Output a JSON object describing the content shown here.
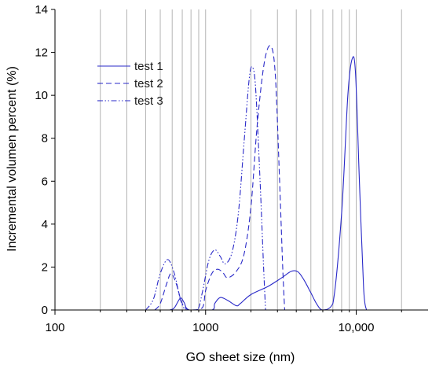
{
  "chart_data": {
    "type": "line",
    "title": "",
    "xlabel": "GO sheet size (nm)",
    "ylabel": "Incremental volumen percent (%)",
    "x_scale": "log",
    "xlim": [
      100,
      30000
    ],
    "ylim": [
      0,
      14
    ],
    "x_ticks": [
      100,
      1000,
      10000
    ],
    "x_tick_labels": [
      "100",
      "1000",
      "10,000"
    ],
    "x_minor_ticks": [
      200,
      300,
      400,
      500,
      600,
      700,
      800,
      900,
      2000,
      3000,
      4000,
      5000,
      6000,
      7000,
      8000,
      9000,
      20000
    ],
    "y_ticks": [
      0,
      2,
      4,
      6,
      8,
      10,
      12,
      14
    ],
    "y_tick_labels": [
      "0",
      "2",
      "4",
      "6",
      "8",
      "10",
      "12",
      "14"
    ],
    "grid": "vertical lines at x ticks",
    "legend_position": "top-left",
    "line_color": "#2929c8",
    "grid_color": "#b4b4b4",
    "series": [
      {
        "name": "test 1",
        "style": "solid",
        "points": [
          [
            580,
            0
          ],
          [
            620,
            0.1
          ],
          [
            680,
            0.55
          ],
          [
            720,
            0.35
          ],
          [
            780,
            0
          ],
          [
            1100,
            0
          ],
          [
            1150,
            0.3
          ],
          [
            1250,
            0.58
          ],
          [
            1400,
            0.45
          ],
          [
            1600,
            0.2
          ],
          [
            1700,
            0.3
          ],
          [
            2000,
            0.72
          ],
          [
            2600,
            1.1
          ],
          [
            3200,
            1.5
          ],
          [
            3700,
            1.8
          ],
          [
            4100,
            1.78
          ],
          [
            4500,
            1.4
          ],
          [
            5000,
            0.8
          ],
          [
            5500,
            0.25
          ],
          [
            6000,
            0
          ],
          [
            7000,
            0.3
          ],
          [
            8000,
            4.5
          ],
          [
            8800,
            10.0
          ],
          [
            9400,
            11.7
          ],
          [
            9900,
            11.0
          ],
          [
            10500,
            6.0
          ],
          [
            11200,
            1.0
          ],
          [
            11700,
            0
          ]
        ]
      },
      {
        "name": "test 2",
        "style": "dashed",
        "points": [
          [
            460,
            0
          ],
          [
            500,
            0.3
          ],
          [
            550,
            1.2
          ],
          [
            590,
            1.7
          ],
          [
            640,
            1.2
          ],
          [
            700,
            0.3
          ],
          [
            780,
            0
          ],
          [
            950,
            0.1
          ],
          [
            1000,
            0.9
          ],
          [
            1100,
            1.7
          ],
          [
            1200,
            1.9
          ],
          [
            1300,
            1.75
          ],
          [
            1400,
            1.5
          ],
          [
            1600,
            1.8
          ],
          [
            1800,
            2.6
          ],
          [
            2000,
            4.8
          ],
          [
            2200,
            8.6
          ],
          [
            2450,
            11.5
          ],
          [
            2700,
            12.3
          ],
          [
            2900,
            11.0
          ],
          [
            3100,
            6.0
          ],
          [
            3250,
            2.0
          ],
          [
            3350,
            0
          ]
        ]
      },
      {
        "name": "test 3",
        "style": "dash-dot-dot",
        "points": [
          [
            400,
            0
          ],
          [
            450,
            0.5
          ],
          [
            500,
            1.7
          ],
          [
            560,
            2.35
          ],
          [
            620,
            1.7
          ],
          [
            680,
            0.5
          ],
          [
            740,
            0
          ],
          [
            880,
            0
          ],
          [
            950,
            0.8
          ],
          [
            1050,
            2.3
          ],
          [
            1150,
            2.8
          ],
          [
            1250,
            2.5
          ],
          [
            1350,
            2.15
          ],
          [
            1500,
            2.7
          ],
          [
            1650,
            4.5
          ],
          [
            1800,
            7.8
          ],
          [
            1950,
            10.8
          ],
          [
            2050,
            11.3
          ],
          [
            2150,
            10.3
          ],
          [
            2300,
            6.0
          ],
          [
            2420,
            2.2
          ],
          [
            2500,
            0
          ]
        ]
      }
    ]
  }
}
